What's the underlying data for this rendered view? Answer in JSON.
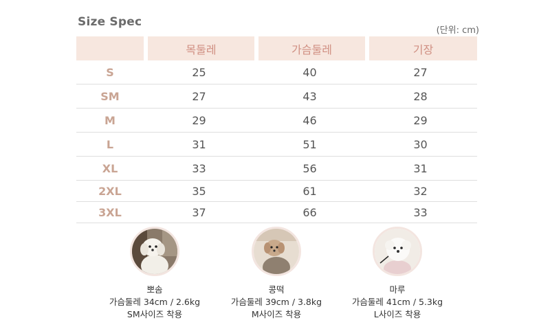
{
  "title": "Size Spec",
  "unit": "(단위: cm)",
  "table": {
    "headers": [
      "",
      "목둘레",
      "가슴둘레",
      "기장"
    ],
    "rows": [
      {
        "size": "S",
        "neck": "25",
        "chest": "40",
        "length": "27"
      },
      {
        "size": "SM",
        "neck": "27",
        "chest": "43",
        "length": "28"
      },
      {
        "size": "M",
        "neck": "29",
        "chest": "46",
        "length": "29"
      },
      {
        "size": "L",
        "neck": "31",
        "chest": "51",
        "length": "30"
      },
      {
        "size": "XL",
        "neck": "33",
        "chest": "56",
        "length": "31"
      },
      {
        "size": "2XL",
        "neck": "35",
        "chest": "61",
        "length": "32"
      },
      {
        "size": "3XL",
        "neck": "37",
        "chest": "66",
        "length": "33"
      }
    ]
  },
  "dogs": [
    {
      "name": "뽀솜",
      "measure": "가슴둘레 34cm / 2.6kg",
      "fit": "SM사이즈 착용"
    },
    {
      "name": "콩떡",
      "measure": "가슴둘레 39cm / 3.8kg",
      "fit": "M사이즈 착용"
    },
    {
      "name": "마루",
      "measure": "가슴둘레 41cm / 5.3kg",
      "fit": "L사이즈 착용"
    }
  ],
  "colors": {
    "header_bg": "#f7e7df",
    "header_text": "#d08f82",
    "size_text": "#c9a493"
  }
}
